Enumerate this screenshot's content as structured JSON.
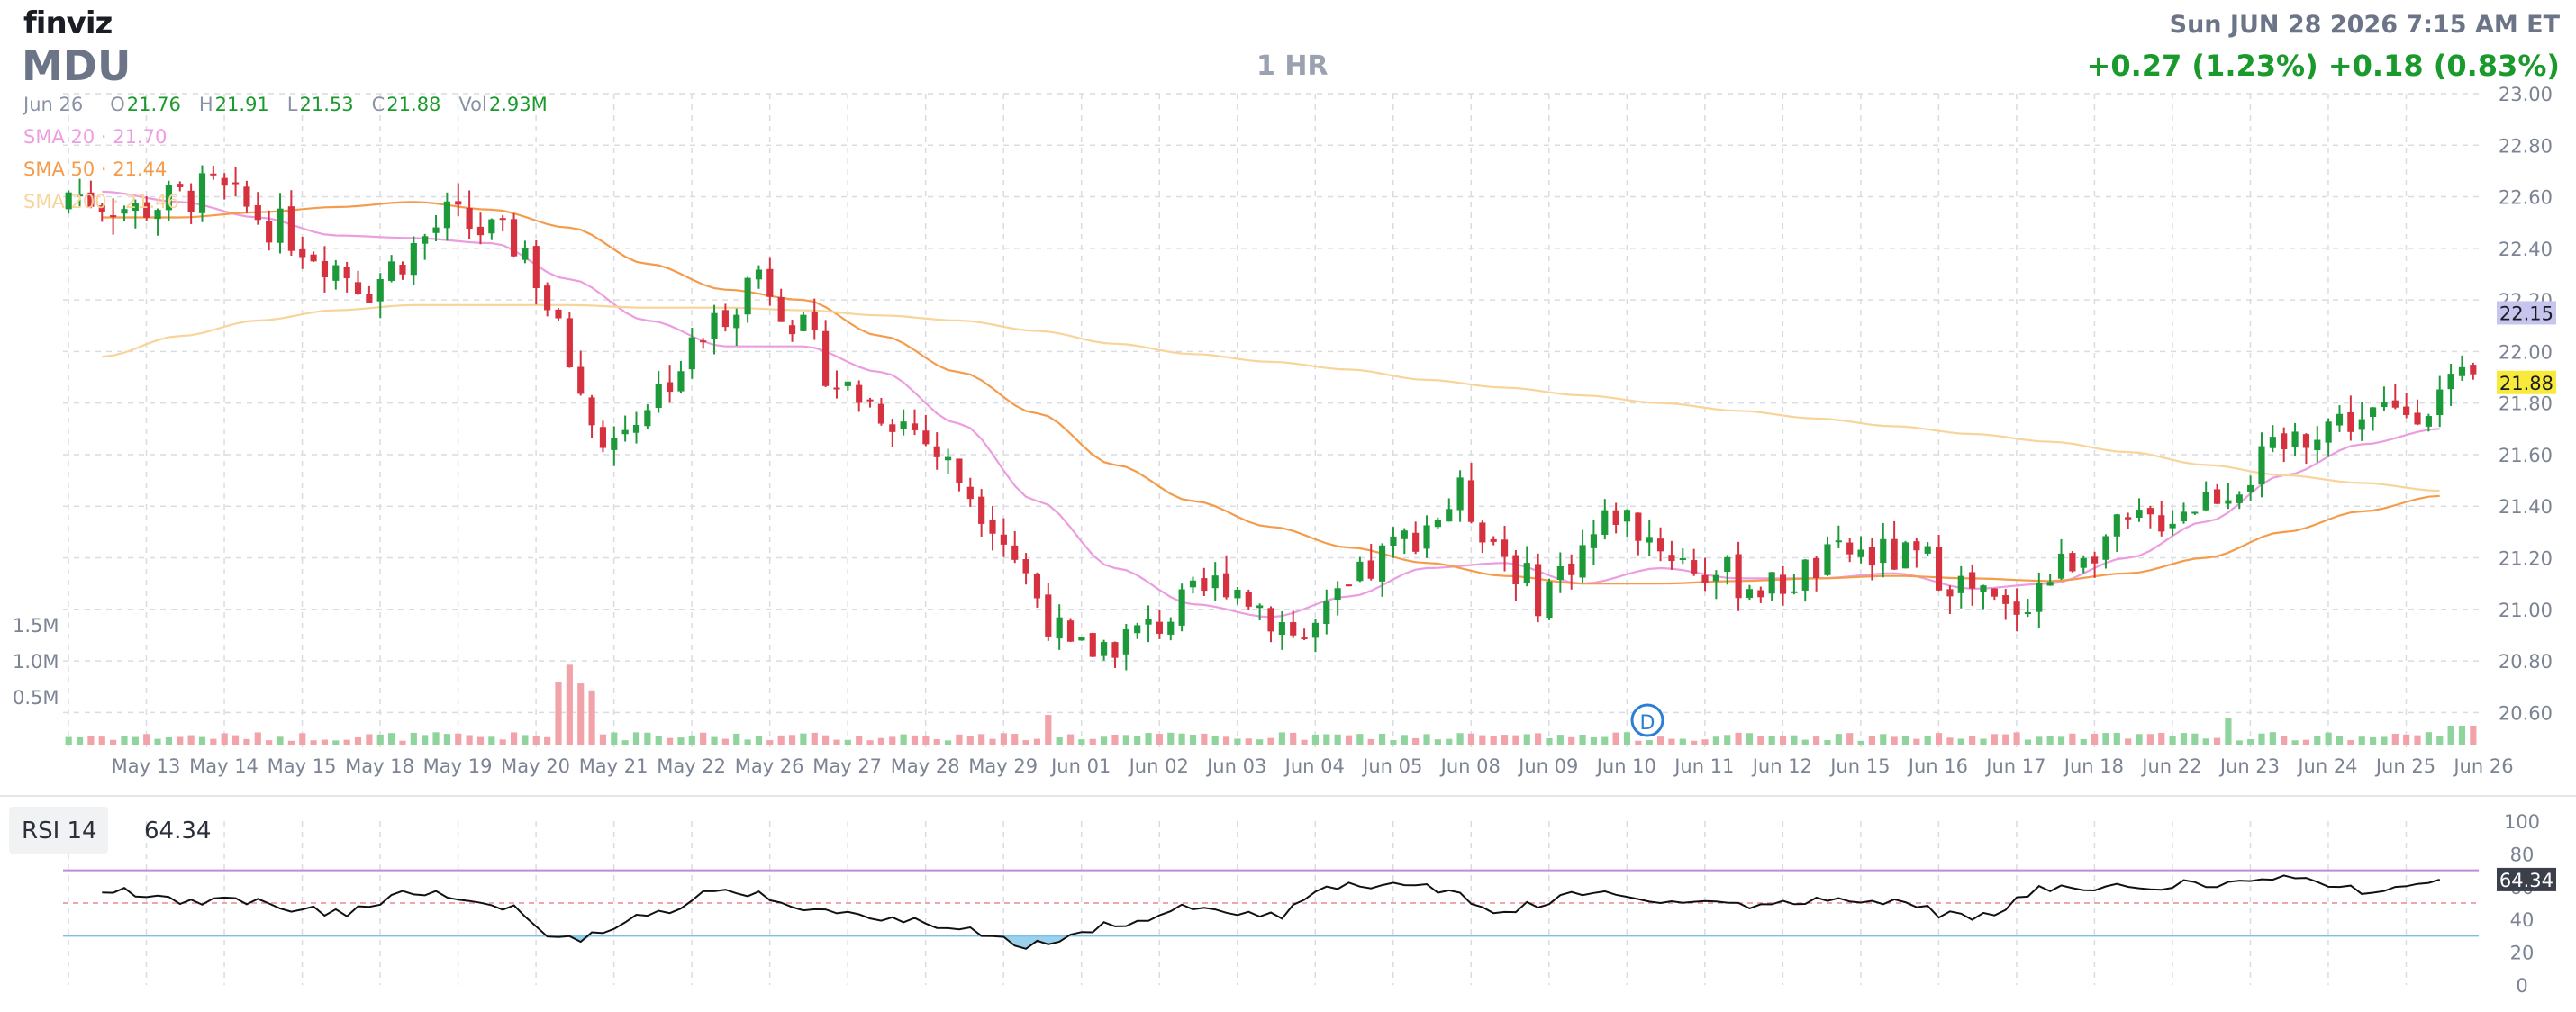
{
  "header": {
    "logo": "finviz",
    "ticker": "MDU",
    "timeframe": "1 HR",
    "datetime": "Sun JUN 28 2026 7:15 AM ET",
    "change": "+0.27 (1.23%)  +0.18 (0.83%)"
  },
  "ohlc": {
    "date": "Jun 26",
    "o_label": "O",
    "o": "21.76",
    "h_label": "H",
    "h": "21.91",
    "l_label": "L",
    "l": "21.53",
    "c_label": "C",
    "c": "21.88",
    "vol_label": "Vol",
    "vol": "2.93M"
  },
  "sma_legend": [
    {
      "label": "SMA 20 · 21.70",
      "color": "#ec9de0"
    },
    {
      "label": "SMA 50 · 21.44",
      "color": "#f59b4c"
    },
    {
      "label": "SMA 200 · 21.46",
      "color": "#f8d49a"
    }
  ],
  "rsi_panel": {
    "label": "RSI 14",
    "value": "64.34"
  },
  "colors": {
    "up": "#1c9a3a",
    "down": "#d6313f",
    "vol_up": "#8fd49c",
    "vol_down": "#f1a3a9",
    "grid": "#d9dce2",
    "axis_text": "#7c8494",
    "badge_sma": "#c7c5ee",
    "badge_last": "#f7ea3a",
    "rsi_line": "#111111",
    "rsi_upper": "#c28ad6",
    "rsi_lower": "#79c1e6"
  },
  "chart_data": [
    {
      "type": "candlestick",
      "x": [
        "May 13",
        "May 14",
        "May 15",
        "May 18",
        "May 19",
        "May 20",
        "May 21",
        "May 22",
        "May 26",
        "May 27",
        "May 28",
        "May 29",
        "Jun 01",
        "Jun 02",
        "Jun 03",
        "Jun 04",
        "Jun 05",
        "Jun 08",
        "Jun 09",
        "Jun 10",
        "Jun 11",
        "Jun 12",
        "Jun 15",
        "Jun 16",
        "Jun 17",
        "Jun 18",
        "Jun 22",
        "Jun 23",
        "Jun 24",
        "Jun 25",
        "Jun 26"
      ],
      "series": [
        {
          "name": "SMA 20",
          "values": [
            22.62,
            22.58,
            22.52,
            22.45,
            22.44,
            22.42,
            22.28,
            22.12,
            22.02,
            22.02,
            21.92,
            21.72,
            21.42,
            21.16,
            21.02,
            20.97,
            21.05,
            21.16,
            21.18,
            21.1,
            21.16,
            21.12,
            21.12,
            21.14,
            21.08,
            21.1,
            21.2,
            21.34,
            21.52,
            21.64,
            21.7
          ]
        },
        {
          "name": "SMA 50",
          "values": [
            22.52,
            22.52,
            22.54,
            22.56,
            22.58,
            22.55,
            22.48,
            22.34,
            22.24,
            22.2,
            22.06,
            21.92,
            21.76,
            21.56,
            21.42,
            21.32,
            21.24,
            21.18,
            21.13,
            21.1,
            21.1,
            21.11,
            21.12,
            21.13,
            21.12,
            21.11,
            21.14,
            21.2,
            21.3,
            21.38,
            21.44
          ]
        },
        {
          "name": "SMA 200",
          "values": [
            21.98,
            22.06,
            22.12,
            22.16,
            22.18,
            22.18,
            22.18,
            22.17,
            22.17,
            22.16,
            22.14,
            22.12,
            22.08,
            22.03,
            21.99,
            21.96,
            21.93,
            21.89,
            21.86,
            21.83,
            21.8,
            21.77,
            21.74,
            21.71,
            21.68,
            21.65,
            21.61,
            21.56,
            21.52,
            21.49,
            21.46
          ]
        }
      ],
      "close": [
        22.55,
        22.63,
        22.45,
        22.25,
        22.52,
        22.4,
        21.62,
        21.95,
        22.32,
        21.88,
        21.7,
        21.36,
        20.82,
        20.92,
        21.12,
        20.88,
        21.2,
        21.44,
        21.05,
        21.38,
        21.16,
        21.08,
        21.22,
        21.18,
        20.98,
        21.24,
        21.36,
        21.5,
        21.72,
        21.76,
        21.88
      ],
      "ylim": [
        20.5,
        23.0
      ],
      "y_ticks": [
        "20.60",
        "20.80",
        "21.00",
        "21.20",
        "21.40",
        "21.60",
        "21.80",
        "22.00",
        "22.20",
        "22.40",
        "22.60",
        "22.80",
        "23.00"
      ],
      "price_badges": [
        {
          "value": "22.15"
        },
        {
          "value": "21.88"
        }
      ],
      "volume_axis": [
        "0.5M",
        "1.0M",
        "1.5M"
      ],
      "event_marker": {
        "label": "D",
        "x": "Jun 10"
      }
    },
    {
      "type": "line",
      "title": "RSI 14",
      "x": [
        "May 13",
        "May 14",
        "May 15",
        "May 18",
        "May 19",
        "May 20",
        "May 21",
        "May 22",
        "May 26",
        "May 27",
        "May 28",
        "May 29",
        "Jun 01",
        "Jun 02",
        "Jun 03",
        "Jun 04",
        "Jun 05",
        "Jun 08",
        "Jun 09",
        "Jun 10",
        "Jun 11",
        "Jun 12",
        "Jun 15",
        "Jun 16",
        "Jun 17",
        "Jun 18",
        "Jun 22",
        "Jun 23",
        "Jun 24",
        "Jun 25",
        "Jun 26"
      ],
      "values": [
        58,
        52,
        50,
        44,
        56,
        50,
        28,
        42,
        58,
        48,
        42,
        34,
        24,
        36,
        48,
        42,
        62,
        60,
        46,
        56,
        50,
        48,
        52,
        50,
        40,
        60,
        60,
        62,
        66,
        58,
        64.34
      ],
      "ylim": [
        0,
        100
      ],
      "y_ticks": [
        "0",
        "20",
        "40",
        "60",
        "80",
        "100"
      ],
      "levels": [
        70,
        30
      ],
      "value_badge": "64.34"
    }
  ]
}
